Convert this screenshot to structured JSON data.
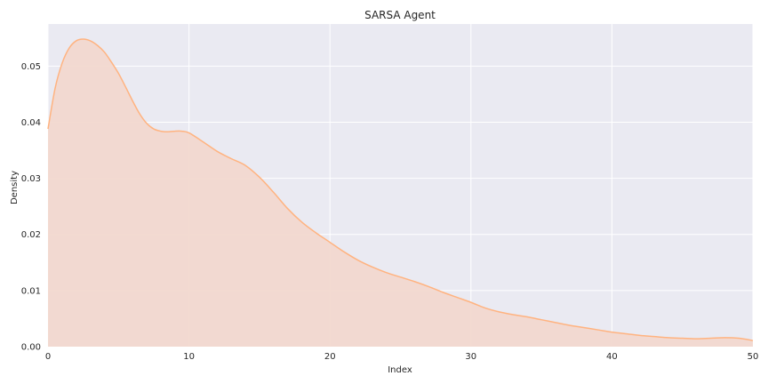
{
  "chart_data": {
    "type": "area",
    "title": "SARSA Agent",
    "xlabel": "Index",
    "ylabel": "Density",
    "xlim": [
      0,
      50
    ],
    "ylim": [
      0,
      0.0575
    ],
    "x_ticks": [
      0,
      10,
      20,
      30,
      40,
      50
    ],
    "y_ticks": [
      0.0,
      0.01,
      0.02,
      0.03,
      0.04,
      0.05
    ],
    "x_tick_labels": [
      "0",
      "10",
      "20",
      "30",
      "40",
      "50"
    ],
    "y_tick_labels": [
      "0.00",
      "0.01",
      "0.02",
      "0.03",
      "0.04",
      "0.05"
    ],
    "grid": true,
    "colors": {
      "background": "#eaeaf2",
      "grid": "#ffffff",
      "line": "#ffb380",
      "fill": "#f2d8cf"
    },
    "series": [
      {
        "x": [
          0,
          0.5,
          1,
          1.5,
          2,
          2.5,
          3,
          3.5,
          4,
          4.5,
          5,
          5.5,
          6,
          6.5,
          7,
          7.5,
          8,
          8.5,
          9,
          9.5,
          10,
          11,
          12,
          13,
          14,
          15,
          16,
          17,
          18,
          19,
          20,
          21,
          22,
          23,
          24,
          25,
          26,
          27,
          28,
          29,
          30,
          31,
          32,
          33,
          34,
          35,
          36,
          37,
          38,
          39,
          40,
          41,
          42,
          43,
          44,
          45,
          46,
          47,
          48,
          49,
          50
        ],
        "y": [
          0.0388,
          0.046,
          0.0505,
          0.0532,
          0.0545,
          0.0548,
          0.0545,
          0.0537,
          0.0525,
          0.0507,
          0.0487,
          0.0463,
          0.0438,
          0.0415,
          0.0398,
          0.0388,
          0.0384,
          0.0383,
          0.0384,
          0.0384,
          0.0381,
          0.0365,
          0.0348,
          0.0335,
          0.0323,
          0.0302,
          0.0275,
          0.0246,
          0.0222,
          0.0203,
          0.0186,
          0.0169,
          0.0154,
          0.0142,
          0.0132,
          0.0124,
          0.0116,
          0.0107,
          0.0097,
          0.0088,
          0.0079,
          0.0069,
          0.0062,
          0.0057,
          0.0053,
          0.0048,
          0.0043,
          0.0038,
          0.0034,
          0.003,
          0.0026,
          0.0023,
          0.002,
          0.0018,
          0.0016,
          0.0015,
          0.0014,
          0.0015,
          0.0016,
          0.0015,
          0.0011
        ]
      }
    ]
  }
}
